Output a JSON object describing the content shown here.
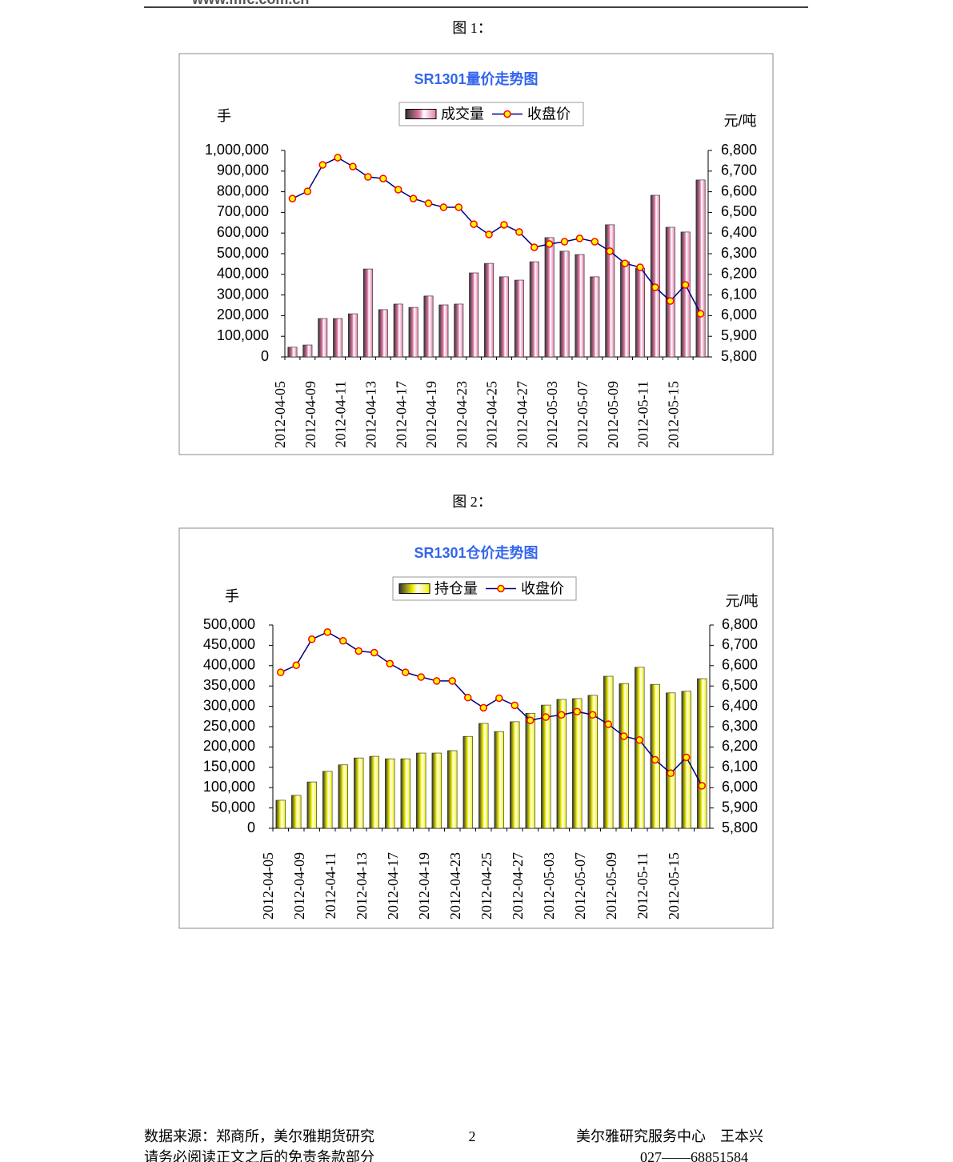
{
  "header": {
    "site": "www.mfc.com.cn"
  },
  "figures": [
    {
      "caption": "图 1："
    },
    {
      "caption": "图 2："
    }
  ],
  "chart_data": [
    {
      "type": "bar",
      "title": "SR1301量价走势图",
      "y_label": "手",
      "y2_label": "元/吨",
      "categories": [
        "2012-04-05",
        null,
        "2012-04-09",
        null,
        "2012-04-11",
        null,
        "2012-04-13",
        null,
        "2012-04-17",
        null,
        "2012-04-19",
        null,
        "2012-04-23",
        null,
        "2012-04-25",
        null,
        "2012-04-27",
        null,
        "2012-05-03",
        null,
        "2012-05-07",
        null,
        "2012-05-09",
        null,
        "2012-05-11",
        null,
        "2012-05-15",
        null
      ],
      "series": [
        {
          "name": "成交量",
          "type": "bar",
          "color": "#e27aa8",
          "values": [
            47000,
            58000,
            186000,
            186000,
            209000,
            426000,
            229000,
            256000,
            240000,
            295000,
            252000,
            256000,
            407000,
            453000,
            388000,
            372000,
            461000,
            578000,
            512000,
            496000,
            388000,
            640000,
            461000,
            430000,
            783000,
            628000,
            605000,
            857000
          ]
        },
        {
          "name": "收盘价",
          "type": "line",
          "axis": "y2",
          "color": "#000080",
          "values": [
            6567,
            6602,
            6730,
            6765,
            6722,
            6672,
            6664,
            6610,
            6567,
            6544,
            6525,
            6525,
            6443,
            6393,
            6440,
            6405,
            6331,
            6347,
            6358,
            6374,
            6358,
            6312,
            6253,
            6234,
            6137,
            6071,
            6149,
            6009
          ]
        }
      ],
      "ylim": [
        0,
        1000000
      ],
      "yticks": [
        0,
        {
          "value": 100000,
          "label": "100,000"
        },
        {
          "value": 200000,
          "label": "200,000"
        },
        {
          "value": 300000,
          "label": "300,000"
        },
        {
          "value": 400000,
          "label": "400,000"
        },
        {
          "value": 500000,
          "label": "500,000"
        },
        {
          "value": 600000,
          "label": "600,000"
        },
        {
          "value": 700000,
          "label": "700,000"
        },
        {
          "value": 800000,
          "label": "800,000"
        },
        {
          "value": 900000,
          "label": "900,000"
        },
        {
          "value": 1000000,
          "label": "1,000,000"
        }
      ],
      "y2lim": [
        5800,
        6800
      ],
      "y2ticks": [
        {
          "value": 5800,
          "label": "5,800"
        },
        {
          "value": 5900,
          "label": "5,900"
        },
        {
          "value": 6000,
          "label": "6,000"
        },
        {
          "value": 6100,
          "label": "6,100"
        },
        {
          "value": 6200,
          "label": "6,200"
        },
        {
          "value": 6300,
          "label": "6,300"
        },
        {
          "value": 6400,
          "label": "6,400"
        },
        {
          "value": 6500,
          "label": "6,500"
        },
        {
          "value": 6600,
          "label": "6,600"
        },
        {
          "value": 6700,
          "label": "6,700"
        },
        {
          "value": 6800,
          "label": "6,800"
        }
      ],
      "grid": false
    },
    {
      "type": "bar",
      "title": "SR1301仓价走势图",
      "y_label": "手",
      "y2_label": "元/吨",
      "categories": [
        "2012-04-05",
        null,
        "2012-04-09",
        null,
        "2012-04-11",
        null,
        "2012-04-13",
        null,
        "2012-04-17",
        null,
        "2012-04-19",
        null,
        "2012-04-23",
        null,
        "2012-04-25",
        null,
        "2012-04-27",
        null,
        "2012-05-03",
        null,
        "2012-05-07",
        null,
        "2012-05-09",
        null,
        "2012-05-11",
        null,
        "2012-05-15",
        null
      ],
      "series": [
        {
          "name": "持仓量",
          "type": "bar",
          "color": "#f2f200",
          "values": [
            69000,
            81000,
            114000,
            140000,
            156000,
            173000,
            177000,
            171000,
            171000,
            185000,
            185000,
            191000,
            226000,
            258000,
            238000,
            262000,
            283000,
            303000,
            317000,
            319000,
            327000,
            374000,
            356000,
            396000,
            354000,
            333000,
            337000,
            368000
          ]
        },
        {
          "name": "收盘价",
          "type": "line",
          "axis": "y2",
          "color": "#000080",
          "values": [
            6567,
            6602,
            6730,
            6765,
            6722,
            6672,
            6664,
            6610,
            6567,
            6544,
            6525,
            6525,
            6443,
            6393,
            6440,
            6405,
            6331,
            6347,
            6358,
            6374,
            6358,
            6312,
            6253,
            6234,
            6137,
            6071,
            6149,
            6009
          ]
        }
      ],
      "ylim": [
        0,
        500000
      ],
      "yticks": [
        0,
        {
          "value": 50000,
          "label": "50,000"
        },
        {
          "value": 100000,
          "label": "100,000"
        },
        {
          "value": 150000,
          "label": "150,000"
        },
        {
          "value": 200000,
          "label": "200,000"
        },
        {
          "value": 250000,
          "label": "250,000"
        },
        {
          "value": 300000,
          "label": "300,000"
        },
        {
          "value": 350000,
          "label": "350,000"
        },
        {
          "value": 400000,
          "label": "400,000"
        },
        {
          "value": 450000,
          "label": "450,000"
        },
        {
          "value": 500000,
          "label": "500,000"
        }
      ],
      "y2lim": [
        5800,
        6800
      ],
      "y2ticks": [
        {
          "value": 5800,
          "label": "5,800"
        },
        {
          "value": 5900,
          "label": "5,900"
        },
        {
          "value": 6000,
          "label": "6,000"
        },
        {
          "value": 6100,
          "label": "6,100"
        },
        {
          "value": 6200,
          "label": "6,200"
        },
        {
          "value": 6300,
          "label": "6,300"
        },
        {
          "value": 6400,
          "label": "6,400"
        },
        {
          "value": 6500,
          "label": "6,500"
        },
        {
          "value": 6600,
          "label": "6,600"
        },
        {
          "value": 6700,
          "label": "6,700"
        },
        {
          "value": 6800,
          "label": "6,800"
        }
      ],
      "grid": false
    }
  ],
  "footer": {
    "source": "数据来源：郑商所，美尔雅期货研究",
    "page": "2",
    "author": "美尔雅研究服务中心　王本兴",
    "disclaimer": "请务必阅读正文之后的免责条款部分",
    "phone": "027——68851584"
  }
}
